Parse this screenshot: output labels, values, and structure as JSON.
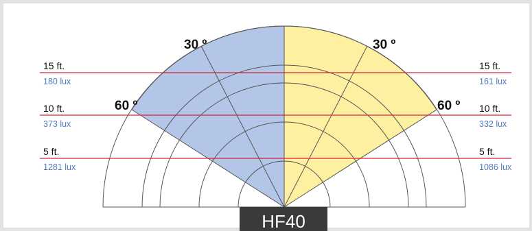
{
  "model_label": "HF40",
  "angle_labels": {
    "left_30": "30 º",
    "right_30": "30 º",
    "left_60": "60 º",
    "right_60": "60 º"
  },
  "distances": [
    {
      "id": "15ft",
      "distance": "15 ft.",
      "left_lux": "180 lux",
      "right_lux": "161 lux"
    },
    {
      "id": "10ft",
      "distance": "10 ft.",
      "left_lux": "373 lux",
      "right_lux": "332 lux"
    },
    {
      "id": "5ft",
      "distance": "5 ft.",
      "left_lux": "1281 lux",
      "right_lux": "1086 lux"
    }
  ],
  "colors": {
    "left_beam": "#b4c6e7",
    "right_beam": "#fdf0a0",
    "line": "#d8223a",
    "lux_text": "#4a7fc0",
    "arc": "#555555",
    "model_bg": "#3a3a3a"
  }
}
